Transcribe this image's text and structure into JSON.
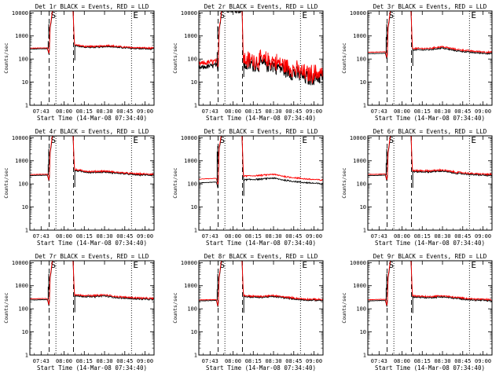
{
  "chart_data": {
    "type": "line",
    "grid_layout": "3x3",
    "series_names": {
      "black": "Events",
      "red": "LLD"
    },
    "colors": {
      "events": "#000000",
      "lld": "#ff0000",
      "axes": "#000000",
      "background": "#ffffff"
    },
    "ylabel": "Counts/sec",
    "xlabel": "Start Time (14-Mar-08 07:34:40)",
    "x_units": "minutes after 07:34:40",
    "xlim": [
      0,
      92
    ],
    "ylim": [
      1,
      12000
    ],
    "yscale": "log",
    "yticks": [
      {
        "value": 1,
        "label": "1"
      },
      {
        "value": 10,
        "label": "10"
      },
      {
        "value": 100,
        "label": "100"
      },
      {
        "value": 1000,
        "label": "1000"
      },
      {
        "value": 10000,
        "label": "10000"
      }
    ],
    "xticks": [
      {
        "value": 8.33,
        "label": "07:43"
      },
      {
        "value": 25.33,
        "label": "08:00"
      },
      {
        "value": 40.33,
        "label": "08:15"
      },
      {
        "value": 55.33,
        "label": "08:30"
      },
      {
        "value": 70.33,
        "label": "08:45"
      },
      {
        "value": 85.33,
        "label": "09:00"
      }
    ],
    "markers": [
      {
        "label": "S",
        "x": 14.3,
        "style": "dashed"
      },
      {
        "label": "",
        "x": 19.3,
        "style": "dotted"
      },
      {
        "label": "",
        "x": 32.3,
        "style": "dashed"
      },
      {
        "label": "E",
        "x": 75.3,
        "style": "dotted"
      }
    ],
    "panels": [
      {
        "title": "Det  1r BLACK = Events, RED = LLD",
        "base": 270,
        "ratio": 1.09,
        "noise": 0.03,
        "dip": 0.6,
        "spike": 600,
        "events": [
          [
            0,
            270
          ],
          [
            13,
            280
          ],
          [
            14.3,
            150
          ],
          [
            15,
            2000
          ],
          [
            17,
            14000
          ],
          [
            32,
            12000
          ],
          [
            33,
            380
          ],
          [
            40,
            330
          ],
          [
            50,
            320
          ],
          [
            58,
            360
          ],
          [
            65,
            320
          ],
          [
            75,
            290
          ],
          [
            92,
            270
          ]
        ]
      },
      {
        "title": "Det  2r BLACK = Events, RED = LLD",
        "base": 40,
        "ratio": 1.5,
        "noise": 0.35,
        "dip": 0.7,
        "spike": 200,
        "events": [
          [
            0,
            40
          ],
          [
            13,
            55
          ],
          [
            14.3,
            25
          ],
          [
            15,
            1500
          ],
          [
            17,
            14000
          ],
          [
            32,
            12000
          ],
          [
            33,
            60
          ],
          [
            45,
            60
          ],
          [
            55,
            55
          ],
          [
            62,
            38
          ],
          [
            70,
            25
          ],
          [
            80,
            15
          ],
          [
            92,
            18
          ]
        ]
      },
      {
        "title": "Det  3r BLACK = Events, RED = LLD",
        "base": 170,
        "ratio": 1.15,
        "noise": 0.03,
        "dip": 0.5,
        "spike": 900,
        "events": [
          [
            0,
            170
          ],
          [
            13,
            180
          ],
          [
            14.3,
            90
          ],
          [
            15,
            2000
          ],
          [
            17,
            14000
          ],
          [
            32,
            12000
          ],
          [
            33,
            250
          ],
          [
            45,
            250
          ],
          [
            55,
            300
          ],
          [
            65,
            230
          ],
          [
            78,
            190
          ],
          [
            92,
            170
          ]
        ]
      },
      {
        "title": "Det  4r BLACK = Events, RED = LLD",
        "base": 230,
        "ratio": 1.1,
        "noise": 0.03,
        "dip": 0.5,
        "spike": 700,
        "events": [
          [
            0,
            230
          ],
          [
            13,
            240
          ],
          [
            14.3,
            120
          ],
          [
            15,
            2000
          ],
          [
            17,
            14000
          ],
          [
            32,
            12000
          ],
          [
            33,
            380
          ],
          [
            45,
            310
          ],
          [
            55,
            330
          ],
          [
            65,
            290
          ],
          [
            78,
            250
          ],
          [
            92,
            240
          ]
        ]
      },
      {
        "title": "Det  5r BLACK = Events, RED = LLD",
        "base": 110,
        "ratio": 1.45,
        "noise": 0.03,
        "dip": 0.5,
        "spike": 2500,
        "events": [
          [
            0,
            110
          ],
          [
            13,
            120
          ],
          [
            14.3,
            60
          ],
          [
            15,
            3000
          ],
          [
            17,
            14000
          ],
          [
            32,
            12000
          ],
          [
            33,
            150
          ],
          [
            45,
            160
          ],
          [
            55,
            180
          ],
          [
            65,
            140
          ],
          [
            78,
            115
          ],
          [
            92,
            100
          ]
        ]
      },
      {
        "title": "Det  6r BLACK = Events, RED = LLD",
        "base": 230,
        "ratio": 1.12,
        "noise": 0.03,
        "dip": 0.5,
        "spike": 800,
        "events": [
          [
            0,
            230
          ],
          [
            13,
            240
          ],
          [
            14.3,
            120
          ],
          [
            15,
            2000
          ],
          [
            17,
            14000
          ],
          [
            32,
            12000
          ],
          [
            33,
            340
          ],
          [
            45,
            330
          ],
          [
            55,
            360
          ],
          [
            65,
            290
          ],
          [
            78,
            250
          ],
          [
            92,
            230
          ]
        ]
      },
      {
        "title": "Det  7r BLACK = Events, RED = LLD",
        "base": 240,
        "ratio": 1.12,
        "noise": 0.03,
        "dip": 0.5,
        "spike": 900,
        "events": [
          [
            0,
            240
          ],
          [
            13,
            250
          ],
          [
            14.3,
            120
          ],
          [
            15,
            2000
          ],
          [
            17,
            14000
          ],
          [
            32,
            12000
          ],
          [
            33,
            360
          ],
          [
            45,
            330
          ],
          [
            55,
            360
          ],
          [
            65,
            300
          ],
          [
            78,
            270
          ],
          [
            92,
            250
          ]
        ]
      },
      {
        "title": "Det  8r BLACK = Events, RED = LLD",
        "base": 220,
        "ratio": 1.1,
        "noise": 0.03,
        "dip": 0.5,
        "spike": 700,
        "events": [
          [
            0,
            220
          ],
          [
            13,
            230
          ],
          [
            14.3,
            110
          ],
          [
            15,
            2000
          ],
          [
            17,
            14000
          ],
          [
            32,
            12000
          ],
          [
            33,
            340
          ],
          [
            45,
            310
          ],
          [
            55,
            340
          ],
          [
            65,
            290
          ],
          [
            78,
            240
          ],
          [
            92,
            230
          ]
        ]
      },
      {
        "title": "Det  9r BLACK = Events, RED = LLD",
        "base": 220,
        "ratio": 1.12,
        "noise": 0.03,
        "dip": 0.5,
        "spike": 800,
        "events": [
          [
            0,
            220
          ],
          [
            13,
            230
          ],
          [
            14.3,
            110
          ],
          [
            15,
            2000
          ],
          [
            17,
            14000
          ],
          [
            32,
            12000
          ],
          [
            33,
            330
          ],
          [
            45,
            300
          ],
          [
            55,
            330
          ],
          [
            65,
            280
          ],
          [
            78,
            240
          ],
          [
            92,
            220
          ]
        ]
      }
    ]
  }
}
